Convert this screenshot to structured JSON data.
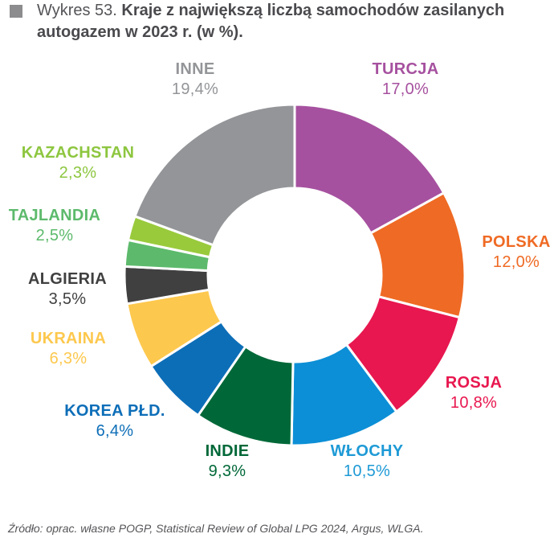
{
  "title": {
    "prefix": "Wykres 53.",
    "main": "Kraje z największą liczbą samochodów zasilanych autogazem w 2023 r. (w %).",
    "marker_color": "#8c8c8e"
  },
  "source": "Źródło: oprac. własne POGP, Statistical Review of Global LPG 2024, Argus, WLGA.",
  "chart_data": {
    "type": "pie",
    "variant": "donut",
    "title": "Kraje z największą liczbą samochodów zasilanych autogazem w 2023 r. (w %)",
    "unit": "%",
    "categories": [
      "Turcja",
      "Polska",
      "Rosja",
      "Włochy",
      "Indie",
      "Korea Płd.",
      "Ukraina",
      "Algieria",
      "Tajlandia",
      "Kazachstan",
      "Inne"
    ],
    "values": [
      17.0,
      12.0,
      10.8,
      10.5,
      9.3,
      6.4,
      6.3,
      3.5,
      2.5,
      2.3,
      19.4
    ],
    "colors": [
      "#a6519f",
      "#ef6a24",
      "#e8174f",
      "#0c8fd6",
      "#006838",
      "#0d6eb8",
      "#fdc84e",
      "#404041",
      "#5dba6c",
      "#99ca3c",
      "#939598"
    ],
    "start_angle_deg": 0,
    "direction": "clockwise",
    "legend": "data labels around ring"
  },
  "labels": [
    {
      "name": "TURCJA",
      "value": "17,0%",
      "color": "#a6519f"
    },
    {
      "name": "POLSKA",
      "value": "12,0%",
      "color": "#ef6a24"
    },
    {
      "name": "ROSJA",
      "value": "10,8%",
      "color": "#e8174f"
    },
    {
      "name": "WŁOCHY",
      "value": "10,5%",
      "color": "#1e9ad6"
    },
    {
      "name": "INDIE",
      "value": "9,3%",
      "color": "#006838"
    },
    {
      "name": "KOREA PŁD.",
      "value": "6,4%",
      "color": "#0d6eb8"
    },
    {
      "name": "UKRAINA",
      "value": "6,3%",
      "color": "#fdc84e"
    },
    {
      "name": "ALGIERIA",
      "value": "3,5%",
      "color": "#404041"
    },
    {
      "name": "TAJLANDIA",
      "value": "2,5%",
      "color": "#5dba6c"
    },
    {
      "name": "KAZACHSTAN",
      "value": "2,3%",
      "color": "#8dc63f"
    },
    {
      "name": "INNE",
      "value": "19,4%",
      "color": "#939598"
    }
  ]
}
